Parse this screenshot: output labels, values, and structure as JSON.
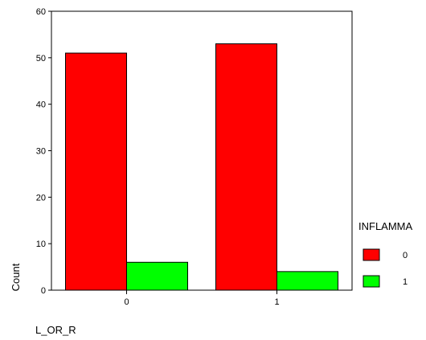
{
  "chart_data": {
    "type": "bar",
    "categories": [
      "0",
      "1"
    ],
    "series": [
      {
        "name": "0",
        "color": "#ff0000",
        "values": [
          51,
          53
        ]
      },
      {
        "name": "1",
        "color": "#00ff00",
        "values": [
          6,
          4
        ]
      }
    ],
    "xlabel": "L_OR_R",
    "ylabel": "Count",
    "ylim": [
      0,
      60
    ],
    "yticks": [
      "0",
      "10",
      "20",
      "30",
      "40",
      "50",
      "60"
    ],
    "legend": {
      "title": "INFLAMMA",
      "placement": "right"
    },
    "grid": false
  }
}
